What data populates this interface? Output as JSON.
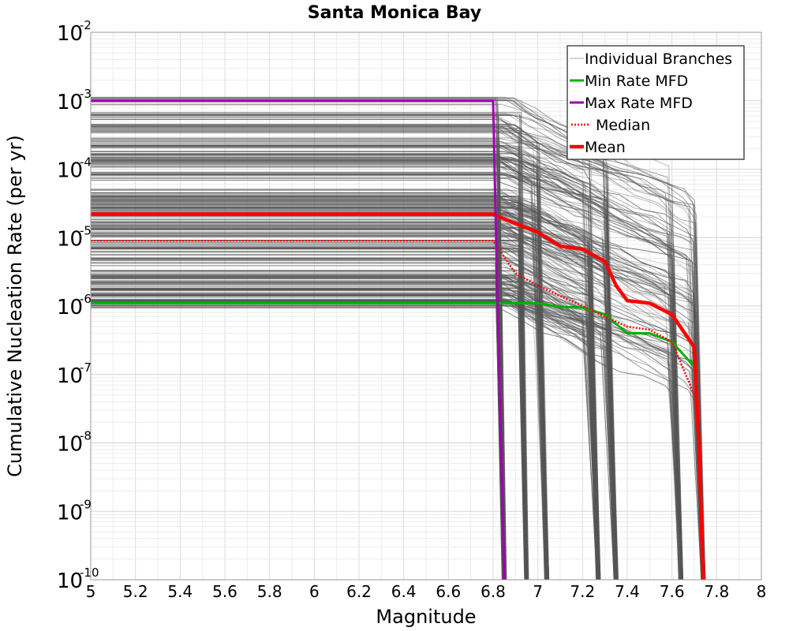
{
  "chart_data": {
    "type": "line",
    "title": "Santa Monica Bay",
    "xlabel": "Magnitude",
    "ylabel": "Cumulative Nucleation Rate (per yr)",
    "xlim": [
      5,
      8
    ],
    "ylim": [
      1e-10,
      0.01
    ],
    "yscale": "log",
    "grid": true,
    "legend_position": "top-right",
    "x_ticks": [
      "5",
      "5.2",
      "5.4",
      "5.6",
      "5.8",
      "6",
      "6.2",
      "6.4",
      "6.6",
      "6.8",
      "7",
      "7.2",
      "7.4",
      "7.6",
      "7.8",
      "8"
    ],
    "y_tick_exponents": [
      "-10",
      "-9",
      "-8",
      "-7",
      "-6",
      "-5",
      "-4",
      "-3",
      "-2"
    ],
    "y_tick_base": "10",
    "series": [
      {
        "name": "Individual Branches",
        "color": "#555555",
        "style": "thin-solid",
        "description_levels": [
          0.001,
          0.0006,
          0.0004,
          0.00025,
          0.0002,
          0.00015,
          0.00012,
          8e-05,
          4.5e-05,
          3.5e-05,
          3e-05,
          2.5e-05,
          2e-05,
          1.5e-05,
          1.2e-05,
          8e-06,
          6.5e-06,
          4.5e-06,
          3e-06,
          2.5e-06,
          2e-06,
          1.6e-06,
          1.3e-06,
          1.1e-06
        ],
        "cutoff_magnitudes": [
          6.82,
          6.92,
          7.02,
          7.25,
          7.33,
          7.62,
          7.72
        ]
      },
      {
        "name": "Min Rate MFD",
        "color": "#00b000",
        "style": "solid",
        "x": [
          5,
          6.8,
          7.0,
          7.1,
          7.2,
          7.3,
          7.4,
          7.5,
          7.6,
          7.7,
          7.72,
          7.74
        ],
        "y": [
          1.1e-06,
          1.1e-06,
          1.1e-06,
          9.7e-07,
          9.5e-07,
          7.5e-07,
          4e-07,
          4e-07,
          3e-07,
          1.3e-07,
          1e-08,
          1e-10
        ]
      },
      {
        "name": "Max Rate MFD",
        "color": "#a000b0",
        "style": "solid",
        "x": [
          5,
          6.8,
          6.82,
          6.85
        ],
        "y": [
          0.001,
          0.001,
          1e-06,
          1e-10
        ]
      },
      {
        "name": "Median",
        "color": "#ff0000",
        "style": "dotted",
        "x": [
          5,
          6.8,
          6.9,
          7.0,
          7.1,
          7.2,
          7.3,
          7.4,
          7.5,
          7.6,
          7.7,
          7.72,
          7.74
        ],
        "y": [
          9e-06,
          9e-06,
          3e-06,
          2e-06,
          1.4e-06,
          1e-06,
          7e-07,
          5e-07,
          4.5e-07,
          3e-07,
          5e-08,
          1e-08,
          1e-10
        ]
      },
      {
        "name": "Mean",
        "color": "#ff0000",
        "style": "thick-solid",
        "x": [
          5,
          6.8,
          6.9,
          7.0,
          7.1,
          7.2,
          7.3,
          7.35,
          7.4,
          7.5,
          7.6,
          7.7,
          7.72,
          7.74
        ],
        "y": [
          2.2e-05,
          2.2e-05,
          1.6e-05,
          1.2e-05,
          7.5e-06,
          6.8e-06,
          4.5e-06,
          2e-06,
          1.2e-06,
          1.1e-06,
          7.5e-07,
          2.5e-07,
          1e-08,
          1e-10
        ]
      }
    ]
  }
}
